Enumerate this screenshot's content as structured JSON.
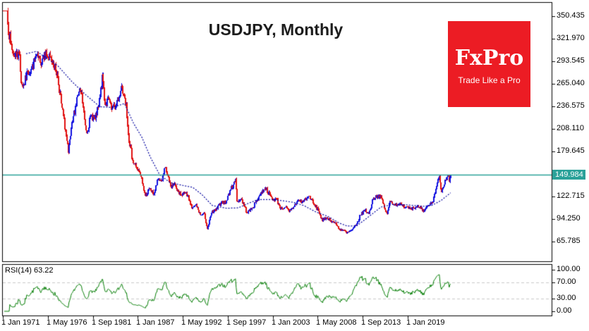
{
  "chart": {
    "title": "USDJPY, Monthly",
    "symbol": "USDJPY",
    "timeframe": "Monthly",
    "current_price_label": "149.984",
    "colors": {
      "bull": "#1010e0",
      "bear": "#e01010",
      "ma_line": "#00009e",
      "current_price_line": "#2aa199",
      "price_tag_bg": "#2aa199",
      "rsi_line": "#007c00",
      "grid_dashed": "#c9c9c9",
      "border": "#000000",
      "background": "#ffffff",
      "logo_red": "#ec1c24"
    }
  },
  "logo": {
    "brand": "FxPro",
    "tagline": "Trade Like a Pro"
  },
  "indicator": {
    "name": "RSI",
    "period": 14,
    "last_value": 63.22,
    "label": "RSI(14) 63.22"
  },
  "chart_data": [
    {
      "type": "candlestick",
      "title": "USDJPY, Monthly",
      "x_start": "1971-01",
      "x_end": "2024-02",
      "ylim": [
        40.4,
        368.3
      ],
      "grid": false,
      "y_tick_labels": [
        "350.435",
        "321.970",
        "293.545",
        "265.040",
        "236.575",
        "208.110",
        "179.645",
        "122.715",
        "94.250",
        "65.785"
      ],
      "x_tick_labels": [
        {
          "label": "1 Jan 1971",
          "month": 0
        },
        {
          "label": "1 May 1976",
          "month": 64
        },
        {
          "label": "1 Sep 1981",
          "month": 128
        },
        {
          "label": "1 Jan 1987",
          "month": 192
        },
        {
          "label": "1 May 1992",
          "month": 256
        },
        {
          "label": "1 Sep 1997",
          "month": 320
        },
        {
          "label": "1 Jan 2003",
          "month": 384
        },
        {
          "label": "1 May 2008",
          "month": 448
        },
        {
          "label": "1 Sep 2013",
          "month": 512
        },
        {
          "label": "1 Jan 2019",
          "month": 576
        }
      ],
      "current_price": 149.984,
      "horizontal_line_price": 149.984,
      "candles_note": "monthly OHLC synthesized from price_keypoints (month index from Jan 1971, close price) via linear interpolation plus deterministic jitter",
      "price_keypoints": [
        [
          0,
          357.6
        ],
        [
          6,
          357.5
        ],
        [
          7,
          340
        ],
        [
          11,
          315
        ],
        [
          14,
          303
        ],
        [
          24,
          302
        ],
        [
          26,
          266
        ],
        [
          30,
          263
        ],
        [
          35,
          280
        ],
        [
          41,
          284
        ],
        [
          47,
          300
        ],
        [
          53,
          292
        ],
        [
          59,
          305
        ],
        [
          65,
          298
        ],
        [
          71,
          293
        ],
        [
          77,
          277
        ],
        [
          83,
          240
        ],
        [
          89,
          205
        ],
        [
          93,
          178
        ],
        [
          99,
          219
        ],
        [
          106,
          250
        ],
        [
          111,
          255
        ],
        [
          117,
          212
        ],
        [
          119,
          203
        ],
        [
          125,
          225
        ],
        [
          131,
          220
        ],
        [
          136,
          237
        ],
        [
          142,
          277
        ],
        [
          146,
          238
        ],
        [
          151,
          246
        ],
        [
          155,
          232
        ],
        [
          161,
          237
        ],
        [
          167,
          251
        ],
        [
          169,
          262
        ],
        [
          176,
          240
        ],
        [
          179,
          200
        ],
        [
          185,
          168
        ],
        [
          191,
          158
        ],
        [
          197,
          147
        ],
        [
          203,
          123
        ],
        [
          209,
          132
        ],
        [
          215,
          125
        ],
        [
          221,
          144
        ],
        [
          227,
          143
        ],
        [
          231,
          159
        ],
        [
          239,
          135
        ],
        [
          245,
          138
        ],
        [
          251,
          125
        ],
        [
          257,
          126
        ],
        [
          263,
          124
        ],
        [
          269,
          107
        ],
        [
          275,
          112
        ],
        [
          281,
          99
        ],
        [
          287,
          100
        ],
        [
          291,
          81
        ],
        [
          297,
          102
        ],
        [
          303,
          105
        ],
        [
          311,
          116
        ],
        [
          317,
          114
        ],
        [
          323,
          130
        ],
        [
          330,
          141
        ],
        [
          331,
          145
        ],
        [
          333,
          116
        ],
        [
          339,
          120
        ],
        [
          347,
          102
        ],
        [
          353,
          106
        ],
        [
          359,
          114
        ],
        [
          365,
          124
        ],
        [
          371,
          131
        ],
        [
          373,
          134
        ],
        [
          383,
          119
        ],
        [
          389,
          119
        ],
        [
          395,
          107
        ],
        [
          401,
          109
        ],
        [
          407,
          103
        ],
        [
          413,
          109
        ],
        [
          419,
          118
        ],
        [
          425,
          115
        ],
        [
          431,
          119
        ],
        [
          437,
          123
        ],
        [
          443,
          112
        ],
        [
          449,
          106
        ],
        [
          455,
          91
        ],
        [
          461,
          96
        ],
        [
          467,
          92
        ],
        [
          473,
          89
        ],
        [
          479,
          81
        ],
        [
          485,
          80
        ],
        [
          489,
          76
        ],
        [
          497,
          80
        ],
        [
          503,
          86
        ],
        [
          509,
          99
        ],
        [
          515,
          105
        ],
        [
          521,
          101
        ],
        [
          527,
          120
        ],
        [
          533,
          124
        ],
        [
          539,
          120
        ],
        [
          545,
          103
        ],
        [
          547,
          100
        ],
        [
          551,
          117
        ],
        [
          557,
          112
        ],
        [
          563,
          113
        ],
        [
          569,
          110
        ],
        [
          575,
          110
        ],
        [
          581,
          108
        ],
        [
          587,
          109
        ],
        [
          593,
          108
        ],
        [
          595,
          106
        ],
        [
          599,
          103
        ],
        [
          605,
          111
        ],
        [
          611,
          115
        ],
        [
          617,
          136
        ],
        [
          620,
          145
        ],
        [
          621,
          148
        ],
        [
          624,
          128
        ],
        [
          629,
          144
        ],
        [
          634,
          148
        ],
        [
          635,
          141
        ],
        [
          636,
          147
        ],
        [
          637,
          149.984
        ]
      ],
      "ma_keypoints": [
        [
          33,
          303
        ],
        [
          48,
          306
        ],
        [
          63,
          297
        ],
        [
          78,
          288
        ],
        [
          98,
          268
        ],
        [
          118,
          251
        ],
        [
          138,
          236
        ],
        [
          156,
          235
        ],
        [
          173,
          240
        ],
        [
          186,
          215
        ],
        [
          198,
          197
        ],
        [
          210,
          172
        ],
        [
          223,
          150
        ],
        [
          238,
          140
        ],
        [
          258,
          136
        ],
        [
          270,
          134
        ],
        [
          283,
          125
        ],
        [
          298,
          111
        ],
        [
          318,
          107.5
        ],
        [
          335,
          108
        ],
        [
          350,
          114
        ],
        [
          363,
          118.5
        ],
        [
          383,
          118.5
        ],
        [
          398,
          117
        ],
        [
          413,
          115
        ],
        [
          428,
          111
        ],
        [
          445,
          103
        ],
        [
          463,
          97
        ],
        [
          478,
          89
        ],
        [
          490,
          85
        ],
        [
          503,
          85
        ],
        [
          518,
          95
        ],
        [
          538,
          109
        ],
        [
          558,
          113
        ],
        [
          578,
          111.5
        ],
        [
          598,
          110
        ],
        [
          610,
          111
        ],
        [
          623,
          117
        ],
        [
          637,
          127
        ]
      ]
    },
    {
      "type": "line",
      "name": "RSI(14)",
      "label": "RSI(14) 63.22",
      "ylim": [
        0,
        100
      ],
      "levels_dashed": [
        70,
        30
      ],
      "y_tick_labels": [
        "100.00",
        "70.00",
        "30.00",
        "0.00"
      ],
      "last_value": 63.22,
      "derived": "RSI(14) computed from the monthly closes of the candlestick series"
    }
  ]
}
